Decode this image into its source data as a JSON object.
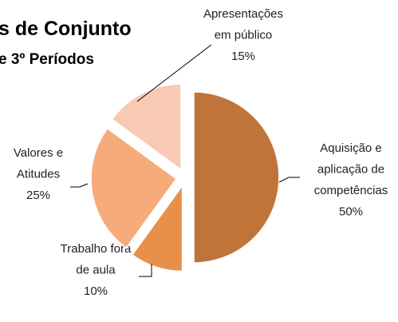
{
  "chart_data": {
    "type": "pie",
    "title": "s de Conjunto",
    "subtitle": "e 3º Períodos",
    "categories": [
      "Aquisição e\naplicação de\ncompetências",
      "Trabalho fora\nde aula",
      "Valores e\nAtitudes",
      "Apresentações\nem público"
    ],
    "values": [
      50,
      10,
      25,
      15
    ],
    "value_labels": [
      "50%",
      "10%",
      "25%",
      "15%"
    ],
    "colors": [
      "#c0743a",
      "#e8904a",
      "#f5ab7a",
      "#f8c9b3"
    ]
  }
}
